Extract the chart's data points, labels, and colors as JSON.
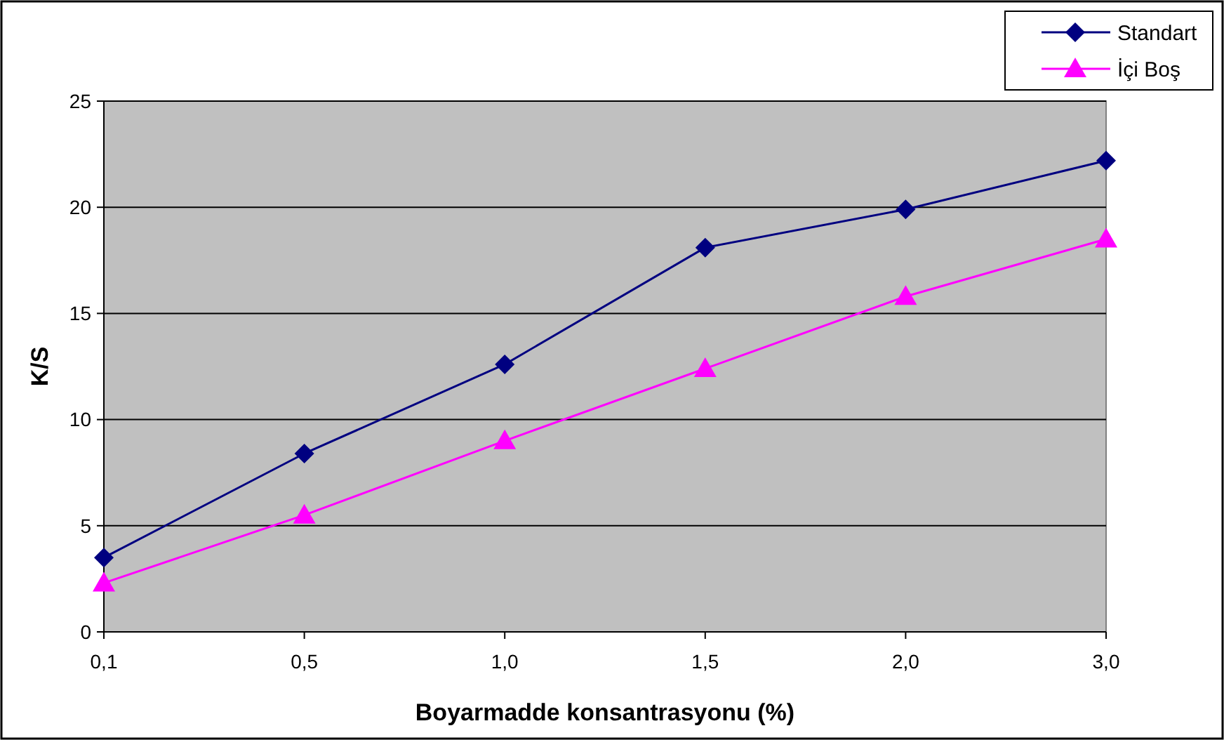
{
  "chart_data": {
    "type": "line",
    "xlabel": "Boyarmadde konsantrasyonu (%)",
    "ylabel": "K/S",
    "categories": [
      "0,1",
      "0,5",
      "1,0",
      "1,5",
      "2,0",
      "3,0"
    ],
    "series": [
      {
        "name": "Standart",
        "color": "#000080",
        "marker": "diamond",
        "values": [
          3.5,
          8.4,
          12.6,
          18.1,
          19.9,
          22.2
        ]
      },
      {
        "name": "İçi Boş",
        "color": "#ff00ff",
        "marker": "triangle",
        "values": [
          2.3,
          5.5,
          9.0,
          12.4,
          15.8,
          18.5
        ]
      }
    ],
    "ylim": [
      0,
      25
    ],
    "yticks": [
      0,
      5,
      10,
      15,
      20,
      25
    ],
    "grid": "y",
    "legend": "top right"
  }
}
